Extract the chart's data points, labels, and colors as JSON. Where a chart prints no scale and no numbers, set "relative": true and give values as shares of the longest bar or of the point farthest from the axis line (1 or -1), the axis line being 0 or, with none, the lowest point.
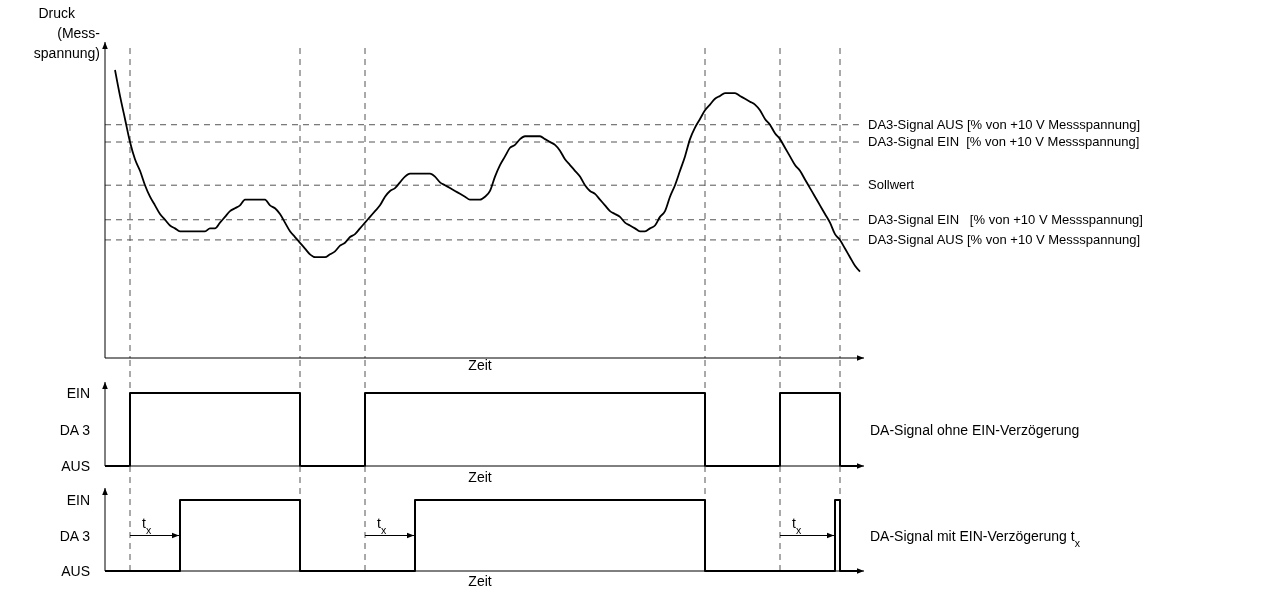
{
  "chart_data": [
    {
      "type": "line",
      "relative": true,
      "xlabel": "Zeit",
      "ylabel": "Druck\n(Mess-\nspannung)",
      "color": "#000000",
      "categories": [
        null,
        null,
        null,
        null,
        null,
        null,
        null,
        null,
        null,
        null,
        null,
        null,
        null,
        null,
        null,
        null,
        null,
        null,
        null,
        null,
        null,
        null,
        null,
        null,
        null,
        null,
        null,
        null,
        null,
        null,
        null,
        null,
        null,
        null,
        null,
        null,
        null,
        null,
        null,
        null,
        null,
        null,
        null,
        null,
        null,
        null,
        null,
        null,
        null,
        null,
        null,
        null,
        null,
        null,
        null,
        null,
        null,
        null,
        null,
        null,
        null,
        null,
        null,
        null,
        null,
        null,
        null,
        null,
        null,
        null,
        null,
        null,
        null,
        null,
        null,
        null,
        null,
        null,
        null,
        null,
        null,
        null,
        null,
        null,
        null,
        null,
        null,
        null,
        null,
        null,
        null,
        null,
        null,
        null,
        null,
        null,
        null,
        null,
        null,
        null,
        null,
        null,
        null,
        null,
        null,
        null,
        null,
        null,
        null,
        null,
        null,
        null,
        null,
        null,
        null,
        null,
        null,
        null,
        null,
        null,
        null,
        null,
        null,
        null,
        null,
        null,
        null,
        null,
        null,
        null,
        null,
        null,
        null,
        null,
        null,
        null,
        null,
        null,
        null,
        null,
        null,
        null,
        null,
        null,
        null,
        null,
        null,
        null,
        null,
        null,
        null,
        null
      ],
      "values": [
        null,
        null,
        1.0,
        0.91,
        0.83,
        0.75,
        0.69,
        0.65,
        0.6,
        0.56,
        0.53,
        0.5,
        0.48,
        0.46,
        0.45,
        0.44,
        0.44,
        0.44,
        0.44,
        0.44,
        0.44,
        0.45,
        0.45,
        0.47,
        0.49,
        0.51,
        0.52,
        0.53,
        0.55,
        0.55,
        0.55,
        0.55,
        0.55,
        0.53,
        0.52,
        0.5,
        0.47,
        0.44,
        0.42,
        0.4,
        0.38,
        0.36,
        0.35,
        0.35,
        0.35,
        0.36,
        0.37,
        0.39,
        0.4,
        0.42,
        0.43,
        0.45,
        0.47,
        0.49,
        0.51,
        0.53,
        0.56,
        0.58,
        0.59,
        0.61,
        0.63,
        0.64,
        0.64,
        0.64,
        0.64,
        0.64,
        0.63,
        0.61,
        0.6,
        0.59,
        0.58,
        0.57,
        0.56,
        0.55,
        0.55,
        0.55,
        0.56,
        0.58,
        0.63,
        0.67,
        0.7,
        0.73,
        0.74,
        0.76,
        0.77,
        0.77,
        0.77,
        0.77,
        0.76,
        0.75,
        0.74,
        0.72,
        0.69,
        0.67,
        0.65,
        0.63,
        0.6,
        0.58,
        0.57,
        0.55,
        0.53,
        0.51,
        0.5,
        0.49,
        0.47,
        0.46,
        0.45,
        0.44,
        0.44,
        0.45,
        0.46,
        0.49,
        0.51,
        0.56,
        0.6,
        0.65,
        0.7,
        0.76,
        0.8,
        0.83,
        0.86,
        0.88,
        0.9,
        0.91,
        0.92,
        0.92,
        0.92,
        0.91,
        0.9,
        0.89,
        0.88,
        0.86,
        0.83,
        0.81,
        0.78,
        0.76,
        0.73,
        0.7,
        0.67,
        0.65,
        0.62,
        0.59,
        0.56,
        0.53,
        0.5,
        0.47,
        0.43,
        0.41,
        0.38,
        0.35,
        0.32,
        0.3
      ],
      "ref_lines": [
        {
          "axis": "y",
          "value": 0.81,
          "label": "DA3-Signal AUS [% von +10 V Messspannung]",
          "line_style": "dashed"
        },
        {
          "axis": "y",
          "value": 0.75,
          "label": "DA3-Signal EIN  [% von +10 V Messspannung]",
          "line_style": "dashed"
        },
        {
          "axis": "y",
          "value": 0.6,
          "label": "Sollwert",
          "line_style": "dashed"
        },
        {
          "axis": "y",
          "value": 0.48,
          "label": "DA3-Signal EIN   [% von +10 V Messspannung]",
          "line_style": "dashed"
        },
        {
          "axis": "y",
          "value": 0.41,
          "label": "DA3-Signal AUS [% von +10 V Messspannung]",
          "line_style": "dashed"
        }
      ]
    },
    {
      "type": "step",
      "relative": true,
      "xlabel": "Zeit",
      "ylabel": "DA 3",
      "color": "#000000",
      "categories": [
        null,
        null,
        null,
        null,
        null,
        null,
        null,
        null,
        null,
        null,
        null,
        null,
        null,
        null,
        null,
        null,
        null,
        null,
        null,
        null,
        null,
        null,
        null,
        null,
        null,
        null,
        null,
        null,
        null,
        null,
        null,
        null,
        null,
        null,
        null,
        null,
        null,
        null,
        null,
        null,
        null,
        null,
        null,
        null,
        null,
        null,
        null,
        null,
        null,
        null,
        null,
        null,
        null,
        null,
        null,
        null,
        null,
        null,
        null,
        null,
        null,
        null,
        null,
        null,
        null,
        null,
        null,
        null,
        null,
        null,
        null,
        null,
        null,
        null,
        null,
        null,
        null,
        null,
        null,
        null,
        null,
        null,
        null,
        null,
        null,
        null,
        null,
        null,
        null,
        null,
        null,
        null,
        null,
        null,
        null,
        null,
        null,
        null,
        null,
        null,
        null,
        null,
        null,
        null,
        null,
        null,
        null,
        null,
        null,
        null,
        null,
        null,
        null,
        null,
        null,
        null,
        null,
        null,
        null,
        null,
        null,
        null,
        null,
        null,
        null,
        null,
        null,
        null,
        null,
        null,
        null,
        null,
        null,
        null,
        null,
        null,
        null,
        null,
        null,
        null,
        null,
        null,
        null,
        null,
        null,
        null,
        null,
        null,
        null,
        null,
        null,
        null
      ],
      "values": [
        0,
        0,
        0,
        0,
        0,
        1,
        1,
        1,
        1,
        1,
        1,
        1,
        1,
        1,
        1,
        1,
        1,
        1,
        1,
        1,
        1,
        1,
        1,
        1,
        1,
        1,
        1,
        1,
        1,
        1,
        1,
        1,
        1,
        1,
        1,
        1,
        1,
        1,
        1,
        0,
        0,
        0,
        0,
        0,
        0,
        0,
        0,
        0,
        0,
        0,
        0,
        0,
        1,
        1,
        1,
        1,
        1,
        1,
        1,
        1,
        1,
        1,
        1,
        1,
        1,
        1,
        1,
        1,
        1,
        1,
        1,
        1,
        1,
        1,
        1,
        1,
        1,
        1,
        1,
        1,
        1,
        1,
        1,
        1,
        1,
        1,
        1,
        1,
        1,
        1,
        1,
        1,
        1,
        1,
        1,
        1,
        1,
        1,
        1,
        1,
        1,
        1,
        1,
        1,
        1,
        1,
        1,
        1,
        1,
        1,
        1,
        1,
        1,
        1,
        1,
        1,
        1,
        1,
        1,
        1,
        0,
        0,
        0,
        0,
        0,
        0,
        0,
        0,
        0,
        0,
        0,
        0,
        0,
        0,
        0,
        1,
        1,
        1,
        1,
        1,
        1,
        1,
        1,
        1,
        1,
        1,
        1,
        0,
        0,
        0,
        0,
        0
      ],
      "annotations": [
        "EIN",
        "AUS",
        "DA-Signal ohne EIN-Verzögerung"
      ]
    },
    {
      "type": "step",
      "relative": true,
      "xlabel": "Zeit",
      "ylabel": "DA 3",
      "color": "#000000",
      "categories": [
        null,
        null,
        null,
        null,
        null,
        null,
        null,
        null,
        null,
        null,
        null,
        null,
        null,
        null,
        null,
        null,
        null,
        null,
        null,
        null,
        null,
        null,
        null,
        null,
        null,
        null,
        null,
        null,
        null,
        null,
        null,
        null,
        null,
        null,
        null,
        null,
        null,
        null,
        null,
        null,
        null,
        null,
        null,
        null,
        null,
        null,
        null,
        null,
        null,
        null,
        null,
        null,
        null,
        null,
        null,
        null,
        null,
        null,
        null,
        null,
        null,
        null,
        null,
        null,
        null,
        null,
        null,
        null,
        null,
        null,
        null,
        null,
        null,
        null,
        null,
        null,
        null,
        null,
        null,
        null,
        null,
        null,
        null,
        null,
        null,
        null,
        null,
        null,
        null,
        null,
        null,
        null,
        null,
        null,
        null,
        null,
        null,
        null,
        null,
        null,
        null,
        null,
        null,
        null,
        null,
        null,
        null,
        null,
        null,
        null,
        null,
        null,
        null,
        null,
        null,
        null,
        null,
        null,
        null,
        null,
        null,
        null,
        null,
        null,
        null,
        null,
        null,
        null,
        null,
        null,
        null,
        null,
        null,
        null,
        null,
        null,
        null,
        null,
        null,
        null,
        null,
        null,
        null,
        null,
        null,
        null,
        null,
        null,
        null,
        null,
        null,
        null
      ],
      "values": [
        0,
        0,
        0,
        0,
        0,
        0,
        0,
        0,
        0,
        0,
        0,
        0,
        0,
        0,
        0,
        1,
        1,
        1,
        1,
        1,
        1,
        1,
        1,
        1,
        1,
        1,
        1,
        1,
        1,
        1,
        1,
        1,
        1,
        1,
        1,
        1,
        1,
        1,
        1,
        0,
        0,
        0,
        0,
        0,
        0,
        0,
        0,
        0,
        0,
        0,
        0,
        0,
        0,
        0,
        0,
        0,
        0,
        0,
        0,
        0,
        0,
        0,
        1,
        1,
        1,
        1,
        1,
        1,
        1,
        1,
        1,
        1,
        1,
        1,
        1,
        1,
        1,
        1,
        1,
        1,
        1,
        1,
        1,
        1,
        1,
        1,
        1,
        1,
        1,
        1,
        1,
        1,
        1,
        1,
        1,
        1,
        1,
        1,
        1,
        1,
        1,
        1,
        1,
        1,
        1,
        1,
        1,
        1,
        1,
        1,
        1,
        1,
        1,
        1,
        1,
        1,
        1,
        1,
        1,
        1,
        0,
        0,
        0,
        0,
        0,
        0,
        0,
        0,
        0,
        0,
        0,
        0,
        0,
        0,
        0,
        0,
        0,
        0,
        0,
        0,
        0,
        0,
        0,
        0,
        0,
        0,
        1,
        0,
        0,
        0,
        0,
        0
      ],
      "annotations": [
        "EIN",
        "AUS",
        "t$_{x}$",
        "t$_{x}$",
        "t$_{x}$",
        "DA-Signal mit EIN-Verzögerung t$_{x}$"
      ]
    }
  ]
}
